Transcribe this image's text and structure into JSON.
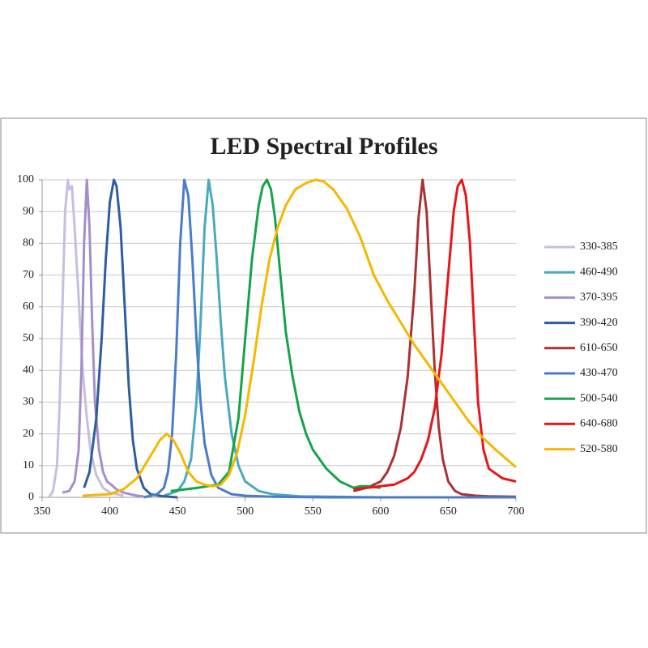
{
  "chart_data": {
    "type": "line",
    "title": "LED Spectral Profiles",
    "xlim": [
      350,
      700
    ],
    "xticks": [
      350,
      400,
      450,
      500,
      550,
      600,
      650,
      700
    ],
    "ylim": [
      0,
      100
    ],
    "yticks": [
      0,
      10,
      20,
      30,
      40,
      50,
      60,
      70,
      80,
      90,
      100
    ],
    "grid": true,
    "legend": "right",
    "series": [
      {
        "name": "330-385",
        "color": "#c9bde0",
        "x": [
          355,
          358,
          361,
          363,
          365,
          367,
          369,
          370,
          372,
          374,
          376,
          378,
          380,
          383,
          386,
          390,
          395,
          400,
          410
        ],
        "values": [
          0,
          2,
          10,
          30,
          60,
          90,
          100,
          97,
          98,
          85,
          70,
          55,
          40,
          25,
          14,
          7,
          3,
          1.5,
          0.5
        ]
      },
      {
        "name": "460-490",
        "color": "#4aa9bf",
        "x": [
          440,
          450,
          455,
          460,
          464,
          467,
          470,
          473,
          476,
          479,
          482,
          485,
          490,
          495,
          500,
          510,
          520,
          540,
          600,
          700
        ],
        "values": [
          0.5,
          2,
          5,
          12,
          30,
          55,
          85,
          100,
          92,
          75,
          55,
          38,
          20,
          10,
          5,
          2,
          1,
          0.3,
          0,
          0
        ]
      },
      {
        "name": "370-395",
        "color": "#a58fc8",
        "x": [
          365,
          370,
          374,
          377,
          379,
          381,
          383,
          385,
          387,
          389,
          392,
          395,
          398,
          401,
          405,
          410,
          415,
          420,
          425
        ],
        "values": [
          1.5,
          2,
          5,
          15,
          40,
          80,
          100,
          85,
          55,
          30,
          15,
          8,
          5,
          4,
          2.5,
          1.5,
          1,
          0.5,
          0.3
        ]
      },
      {
        "name": "390-420",
        "color": "#2e5e9e",
        "x": [
          381,
          385,
          390,
          394,
          397,
          400,
          403,
          405,
          408,
          411,
          414,
          417,
          420,
          425,
          430,
          440,
          450
        ],
        "values": [
          3,
          8,
          25,
          50,
          75,
          93,
          100,
          98,
          85,
          60,
          35,
          18,
          9,
          3,
          1,
          0.3,
          0
        ]
      },
      {
        "name": "610-650",
        "color": "#a93333",
        "x": [
          580,
          590,
          600,
          605,
          610,
          615,
          620,
          625,
          628,
          631,
          634,
          637,
          640,
          643,
          646,
          650,
          655,
          660,
          670,
          680,
          700
        ],
        "values": [
          2,
          3,
          5,
          8,
          13,
          22,
          38,
          65,
          88,
          100,
          90,
          65,
          40,
          22,
          12,
          5,
          2,
          1,
          0.5,
          0.3,
          0.2
        ]
      },
      {
        "name": "430-470",
        "color": "#4a7cc9",
        "x": [
          425,
          435,
          440,
          443,
          446,
          449,
          452,
          455,
          458,
          461,
          464,
          467,
          470,
          475,
          480,
          490,
          500,
          520,
          560,
          700
        ],
        "values": [
          0,
          1,
          3,
          8,
          20,
          45,
          80,
          100,
          95,
          75,
          50,
          30,
          17,
          7,
          3,
          1,
          0.5,
          0.2,
          0,
          0
        ]
      },
      {
        "name": "500-540",
        "color": "#16a34a",
        "x": [
          445,
          455,
          465,
          472,
          480,
          488,
          495,
          500,
          505,
          510,
          513,
          516,
          519,
          522,
          526,
          530,
          535,
          540,
          545,
          550,
          555,
          560,
          565,
          570,
          575,
          580,
          585,
          590,
          600
        ],
        "values": [
          2,
          2.5,
          3,
          3.5,
          4,
          8,
          25,
          50,
          75,
          92,
          98,
          100,
          97,
          88,
          70,
          52,
          38,
          27,
          20,
          15,
          12,
          9,
          7,
          5,
          4,
          3,
          3.5,
          3.5,
          3
        ]
      },
      {
        "name": "640-680",
        "color": "#e8161a",
        "x": [
          580,
          590,
          600,
          610,
          620,
          625,
          630,
          635,
          640,
          645,
          650,
          654,
          657,
          660,
          663,
          666,
          669,
          672,
          676,
          680,
          690,
          700
        ],
        "values": [
          2.5,
          3,
          3.5,
          4,
          6,
          8,
          12,
          18,
          28,
          45,
          70,
          90,
          98,
          100,
          95,
          80,
          55,
          30,
          15,
          9,
          6,
          5
        ]
      },
      {
        "name": "520-580",
        "color": "#f5b800",
        "x": [
          380,
          400,
          410,
          420,
          430,
          437,
          442,
          447,
          452,
          458,
          464,
          470,
          476,
          482,
          488,
          494,
          500,
          506,
          512,
          518,
          524,
          530,
          537,
          545,
          552,
          558,
          565,
          575,
          585,
          595,
          605,
          615,
          625,
          635,
          645,
          655,
          665,
          675,
          685,
          700
        ],
        "values": [
          0.5,
          1,
          2.5,
          6,
          13,
          18,
          20,
          18,
          14,
          8,
          5,
          4,
          3.5,
          4,
          7,
          14,
          26,
          42,
          60,
          75,
          85,
          92,
          97,
          99,
          100,
          99.5,
          97,
          91,
          82,
          70,
          62,
          55,
          48,
          42,
          36,
          30,
          24,
          19,
          15,
          9.5
        ]
      }
    ]
  }
}
